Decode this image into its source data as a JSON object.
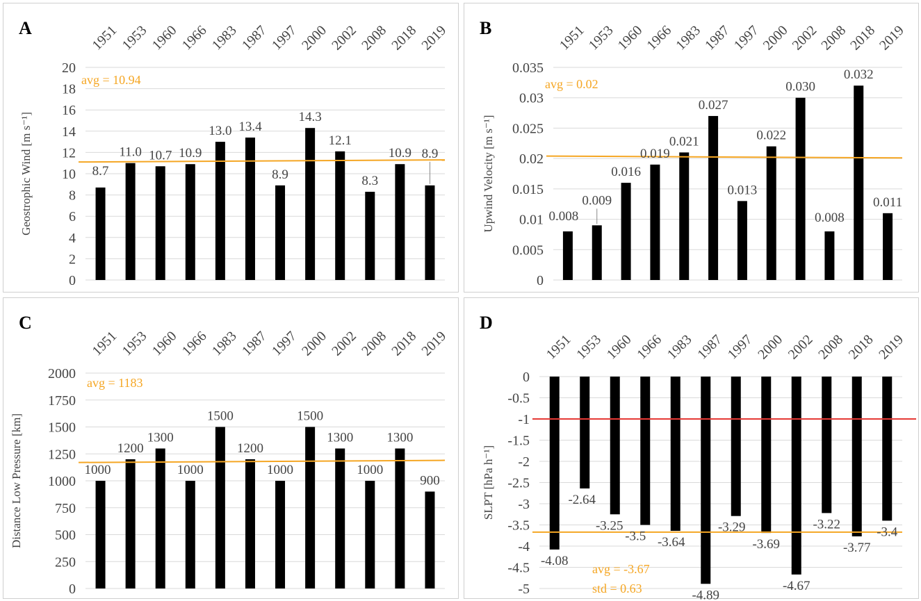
{
  "colors": {
    "bar": "#000000",
    "avg_line": "#F5A623",
    "red_line": "#E53935",
    "grid": "#d9d9d9"
  },
  "chart_data": [
    {
      "panel_letter": "A",
      "type": "bar",
      "categories": [
        "1951",
        "1953",
        "1960",
        "1966",
        "1983",
        "1987",
        "1997",
        "2000",
        "2002",
        "2008",
        "2018",
        "2019"
      ],
      "values": [
        8.7,
        11.0,
        10.7,
        10.9,
        13.0,
        13.4,
        8.9,
        14.3,
        12.1,
        8.3,
        10.9,
        8.9
      ],
      "data_labels": [
        "8.7",
        "11.0",
        "10.7",
        "10.9",
        "13.0",
        "13.4",
        "8.9",
        "14.3",
        "12.1",
        "8.3",
        "10.9",
        "8.9"
      ],
      "ylabel": "Geostrophic Wind [m s⁻¹]",
      "ylim": [
        0,
        20
      ],
      "yticks": [
        "0",
        "2",
        "4",
        "6",
        "8",
        "10",
        "12",
        "14",
        "16",
        "18",
        "20"
      ],
      "grid": true,
      "avg_text": "avg = 10.94",
      "avg_line": [
        11.1,
        11.3
      ]
    },
    {
      "panel_letter": "B",
      "type": "bar",
      "categories": [
        "1951",
        "1953",
        "1960",
        "1966",
        "1983",
        "1987",
        "1997",
        "2000",
        "2002",
        "2008",
        "2018",
        "2019"
      ],
      "values": [
        0.008,
        0.009,
        0.016,
        0.019,
        0.021,
        0.027,
        0.013,
        0.022,
        0.03,
        0.008,
        0.032,
        0.011
      ],
      "data_labels": [
        "0.008",
        "0.009",
        "0.016",
        "0.019",
        "0.021",
        "0.027",
        "0.013",
        "0.022",
        "0.030",
        "0.008",
        "0.032",
        "0.011"
      ],
      "ylabel": "Upwind Velocity [m s⁻¹]",
      "ylim": [
        0,
        0.035
      ],
      "yticks": [
        "0",
        "0.005",
        "0.01",
        "0.015",
        "0.02",
        "0.025",
        "0.03",
        "0.035"
      ],
      "grid": true,
      "avg_text": "avg = 0.02",
      "avg_line": [
        0.0204,
        0.0201
      ]
    },
    {
      "panel_letter": "C",
      "type": "bar",
      "categories": [
        "1951",
        "1953",
        "1960",
        "1966",
        "1983",
        "1987",
        "1997",
        "2000",
        "2002",
        "2008",
        "2018",
        "2019"
      ],
      "values": [
        1000,
        1200,
        1300,
        1000,
        1500,
        1200,
        1000,
        1500,
        1300,
        1000,
        1300,
        900
      ],
      "data_labels": [
        "1000",
        "1200",
        "1300",
        "1000",
        "1500",
        "1200",
        "1000",
        "1500",
        "1300",
        "1000",
        "1300",
        "900"
      ],
      "ylabel": "Distance Low Pressure [km]",
      "ylim": [
        0,
        2000
      ],
      "yticks": [
        "0",
        "250",
        "500",
        "750",
        "1000",
        "1250",
        "1500",
        "1750",
        "2000"
      ],
      "grid": true,
      "avg_text": "avg = 1183",
      "avg_line": [
        1170,
        1190
      ]
    },
    {
      "panel_letter": "D",
      "type": "bar",
      "categories": [
        "1951",
        "1953",
        "1960",
        "1966",
        "1983",
        "1987",
        "1997",
        "2000",
        "2002",
        "2008",
        "2018",
        "2019"
      ],
      "values": [
        -4.08,
        -2.64,
        -3.25,
        -3.5,
        -3.64,
        -4.89,
        -3.29,
        -3.69,
        -4.67,
        -3.22,
        -3.77,
        -3.4
      ],
      "data_labels": [
        "-4.08",
        "-2.64",
        "-3.25",
        "-3.5",
        "-3.64",
        "-4.89",
        "-3.29",
        "-3.69",
        "-4.67",
        "-3.22",
        "-3.77",
        "-3.4"
      ],
      "ylabel": "SLPT [hPa h⁻¹]",
      "ylim": [
        -5,
        0
      ],
      "yticks": [
        "-5",
        "-4.5",
        "-4",
        "-3.5",
        "-3",
        "-2.5",
        "-2",
        "-1.5",
        "-1",
        "-0.5",
        "0"
      ],
      "grid": true,
      "avg_text": "avg = -3.67",
      "std_text": "std = 0.63",
      "avg_line": [
        -3.67,
        -3.67
      ],
      "red_line": -1
    }
  ]
}
